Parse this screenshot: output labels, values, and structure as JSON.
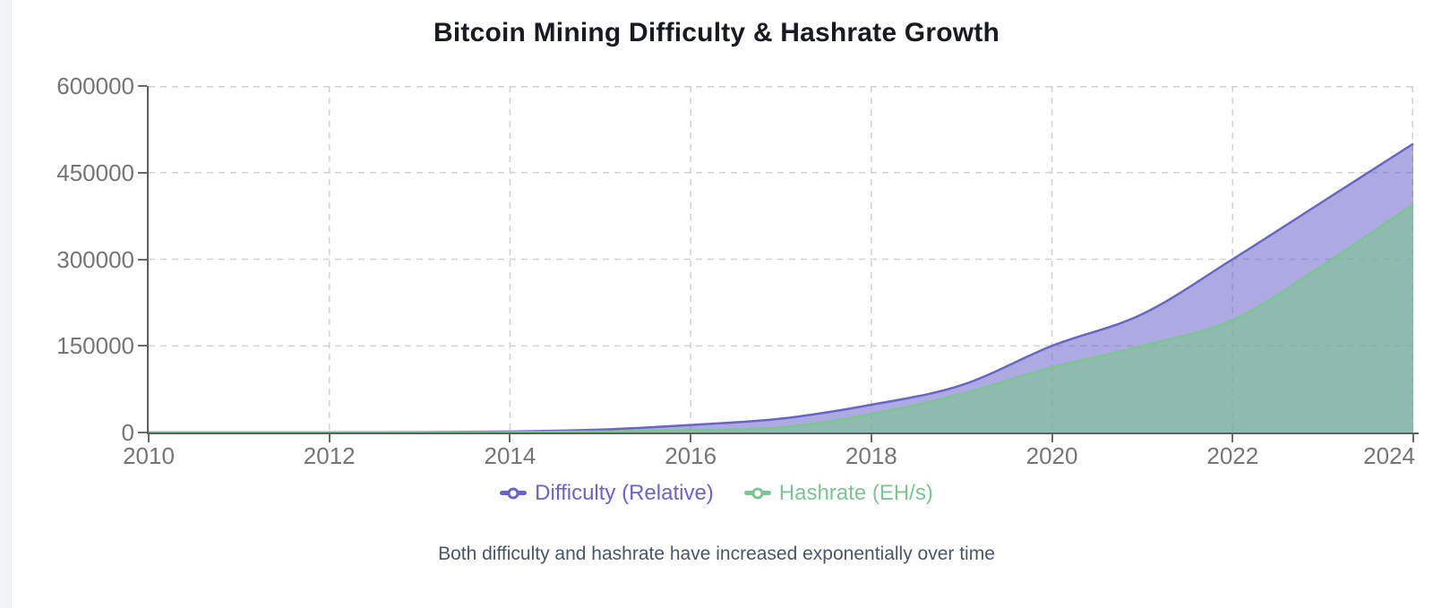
{
  "chart_data": {
    "type": "area",
    "title": "Bitcoin Mining Difficulty & Hashrate Growth",
    "caption": "Both difficulty and hashrate have increased exponentially over time",
    "x": [
      2010,
      2011,
      2012,
      2013,
      2014,
      2015,
      2016,
      2017,
      2018,
      2019,
      2020,
      2021,
      2022,
      2023,
      2024
    ],
    "series": [
      {
        "name": "Difficulty (Relative)",
        "color": "#6a64c8",
        "fill_alpha": 0.55,
        "values": [
          1,
          12,
          80,
          600,
          1800,
          5000,
          13000,
          24000,
          48000,
          82000,
          150000,
          205000,
          300000,
          400000,
          500000
        ]
      },
      {
        "name": "Hashrate (EH/s)",
        "color": "#7cc491",
        "fill_alpha": 0.62,
        "values": [
          0,
          1,
          15,
          120,
          600,
          1700,
          4000,
          9000,
          32000,
          67000,
          113000,
          150000,
          195000,
          290000,
          395000
        ]
      }
    ],
    "xticks": [
      2010,
      2012,
      2014,
      2016,
      2018,
      2020,
      2022,
      2024
    ],
    "yticks": [
      0,
      150000,
      300000,
      450000,
      600000
    ],
    "xlim": [
      2010,
      2024
    ],
    "ylim": [
      0,
      600000
    ],
    "grid": true,
    "grid_style": "dashed",
    "legend_position": "bottom",
    "line_smoothing": "monotone"
  },
  "style": {
    "grid_color": "#d3d3d5",
    "axis_color": "#5f5f5f",
    "tick_color": "#6a6a6a",
    "tick_label_color": "#757575",
    "title_color": "#181a22",
    "caption_color": "#4a5568",
    "background": "#ffffff",
    "left_strip_color": "#f3f4f6"
  }
}
